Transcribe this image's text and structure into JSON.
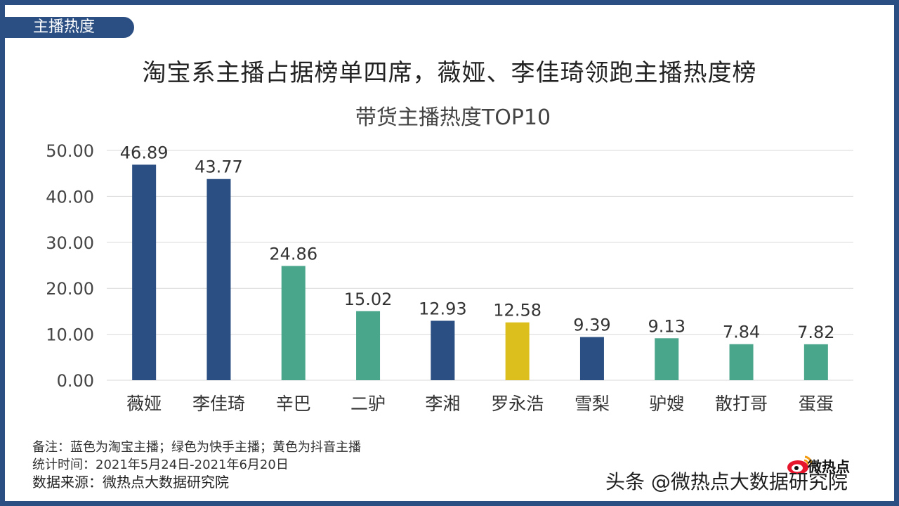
{
  "section_tag": "主播热度",
  "main_title": "淘宝系主播占据榜单四席，薇娅、李佳琦领跑主播热度榜",
  "colors": {
    "frame": "#2b4f82",
    "taobao_blue": "#2b4f82",
    "kuaishou_green": "#4aa68a",
    "douyin_yellow": "#dcbf1c",
    "grid": "#d9d9d9"
  },
  "chart_data": {
    "type": "bar",
    "title": "带货主播热度TOP10",
    "xlabel": "",
    "ylabel": "",
    "ylim": [
      0,
      50
    ],
    "yticks": [
      "0.00",
      "10.00",
      "20.00",
      "30.00",
      "40.00",
      "50.00"
    ],
    "categories": [
      "薇娅",
      "李佳琦",
      "辛巴",
      "二驴",
      "李湘",
      "罗永浩",
      "雪梨",
      "驴嫂",
      "散打哥",
      "蛋蛋"
    ],
    "values": [
      46.89,
      43.77,
      24.86,
      15.02,
      12.93,
      12.58,
      9.39,
      9.13,
      7.84,
      7.82
    ],
    "value_labels": [
      "46.89",
      "43.77",
      "24.86",
      "15.02",
      "12.93",
      "12.58",
      "9.39",
      "9.13",
      "7.84",
      "7.82"
    ],
    "platforms": [
      "taobao",
      "taobao",
      "kuaishou",
      "kuaishou",
      "taobao",
      "douyin",
      "taobao",
      "kuaishou",
      "kuaishou",
      "kuaishou"
    ],
    "grid": true
  },
  "notes": {
    "remark": "备注：蓝色为淘宝主播；绿色为快手主播；黄色为抖音主播",
    "period": "统计时间：2021年5月24日-2021年6月20日",
    "source": "数据来源：微热点大数据研究院"
  },
  "watermark": {
    "text": "头条 @微热点大数据研究院",
    "logo_text": "微热点"
  }
}
